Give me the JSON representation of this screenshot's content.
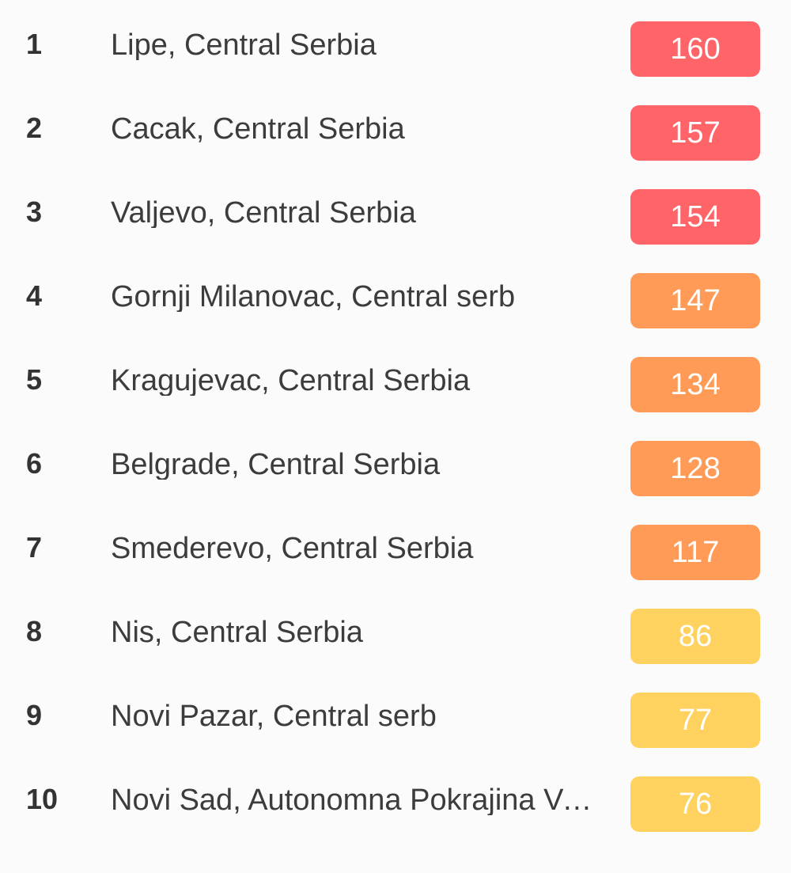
{
  "colors": {
    "unhealthy": "#ff6468",
    "sensitive": "#ff9a57",
    "moderate": "#ffd25f"
  },
  "rows": [
    {
      "rank": "1",
      "city": "Lipe, Central Serbia",
      "aqi": "160",
      "level": "unhealthy"
    },
    {
      "rank": "2",
      "city": "Cacak, Central Serbia",
      "aqi": "157",
      "level": "unhealthy"
    },
    {
      "rank": "3",
      "city": "Valjevo, Central Serbia",
      "aqi": "154",
      "level": "unhealthy"
    },
    {
      "rank": "4",
      "city": "Gornji Milanovac, Central serb",
      "aqi": "147",
      "level": "sensitive"
    },
    {
      "rank": "5",
      "city": "Kragujevac, Central Serbia",
      "aqi": "134",
      "level": "sensitive"
    },
    {
      "rank": "6",
      "city": "Belgrade, Central Serbia",
      "aqi": "128",
      "level": "sensitive"
    },
    {
      "rank": "7",
      "city": "Smederevo, Central Serbia",
      "aqi": "117",
      "level": "sensitive"
    },
    {
      "rank": "8",
      "city": "Nis, Central Serbia",
      "aqi": "86",
      "level": "moderate"
    },
    {
      "rank": "9",
      "city": "Novi Pazar, Central serb",
      "aqi": "77",
      "level": "moderate"
    },
    {
      "rank": "10",
      "city": "Novi Sad, Autonomna Pokrajina Vojvodina",
      "aqi": "76",
      "level": "moderate"
    }
  ]
}
